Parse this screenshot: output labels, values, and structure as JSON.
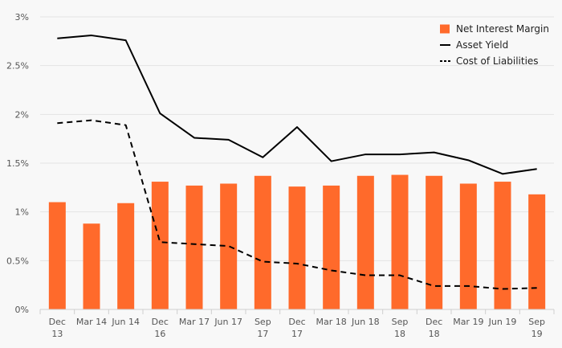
{
  "chart_data": {
    "type": "bar+line",
    "categories": [
      [
        "Dec",
        "13"
      ],
      [
        "Mar 14"
      ],
      [
        "Jun 14"
      ],
      [
        "Dec",
        "16"
      ],
      [
        "Mar 17"
      ],
      [
        "Jun 17"
      ],
      [
        "Sep",
        "17"
      ],
      [
        "Dec",
        "17"
      ],
      [
        "Mar 18"
      ],
      [
        "Jun 18"
      ],
      [
        "Sep",
        "18"
      ],
      [
        "Dec",
        "18"
      ],
      [
        "Mar 19"
      ],
      [
        "Jun 19"
      ],
      [
        "Sep",
        "19"
      ]
    ],
    "ylim": [
      0,
      3
    ],
    "yticks": [
      {
        "value": 0,
        "label": "0%"
      },
      {
        "value": 0.5,
        "label": "0.5%"
      },
      {
        "value": 1,
        "label": "1%"
      },
      {
        "value": 1.5,
        "label": "1.5%"
      },
      {
        "value": 2,
        "label": "2%"
      },
      {
        "value": 2.5,
        "label": "2.5%"
      },
      {
        "value": 3,
        "label": "3%"
      }
    ],
    "grid": true,
    "legend_position": "top-right",
    "series": [
      {
        "name": "Net Interest Margin",
        "kind": "bar",
        "color": "#ff6a2b",
        "values": [
          1.1,
          0.88,
          1.09,
          1.31,
          1.27,
          1.29,
          1.37,
          1.26,
          1.27,
          1.37,
          1.38,
          1.37,
          1.29,
          1.31,
          1.18
        ]
      },
      {
        "name": "Asset Yield",
        "kind": "line",
        "style": "solid",
        "color": "#000000",
        "values": [
          2.78,
          2.81,
          2.76,
          2.01,
          1.76,
          1.74,
          1.56,
          1.87,
          1.52,
          1.59,
          1.59,
          1.61,
          1.53,
          1.39,
          1.44
        ]
      },
      {
        "name": "Cost of Liabilities",
        "kind": "line",
        "style": "dashed",
        "color": "#000000",
        "values": [
          1.91,
          1.94,
          1.89,
          0.69,
          0.67,
          0.65,
          0.49,
          0.47,
          0.4,
          0.35,
          0.35,
          0.24,
          0.24,
          0.21,
          0.22
        ]
      }
    ]
  }
}
